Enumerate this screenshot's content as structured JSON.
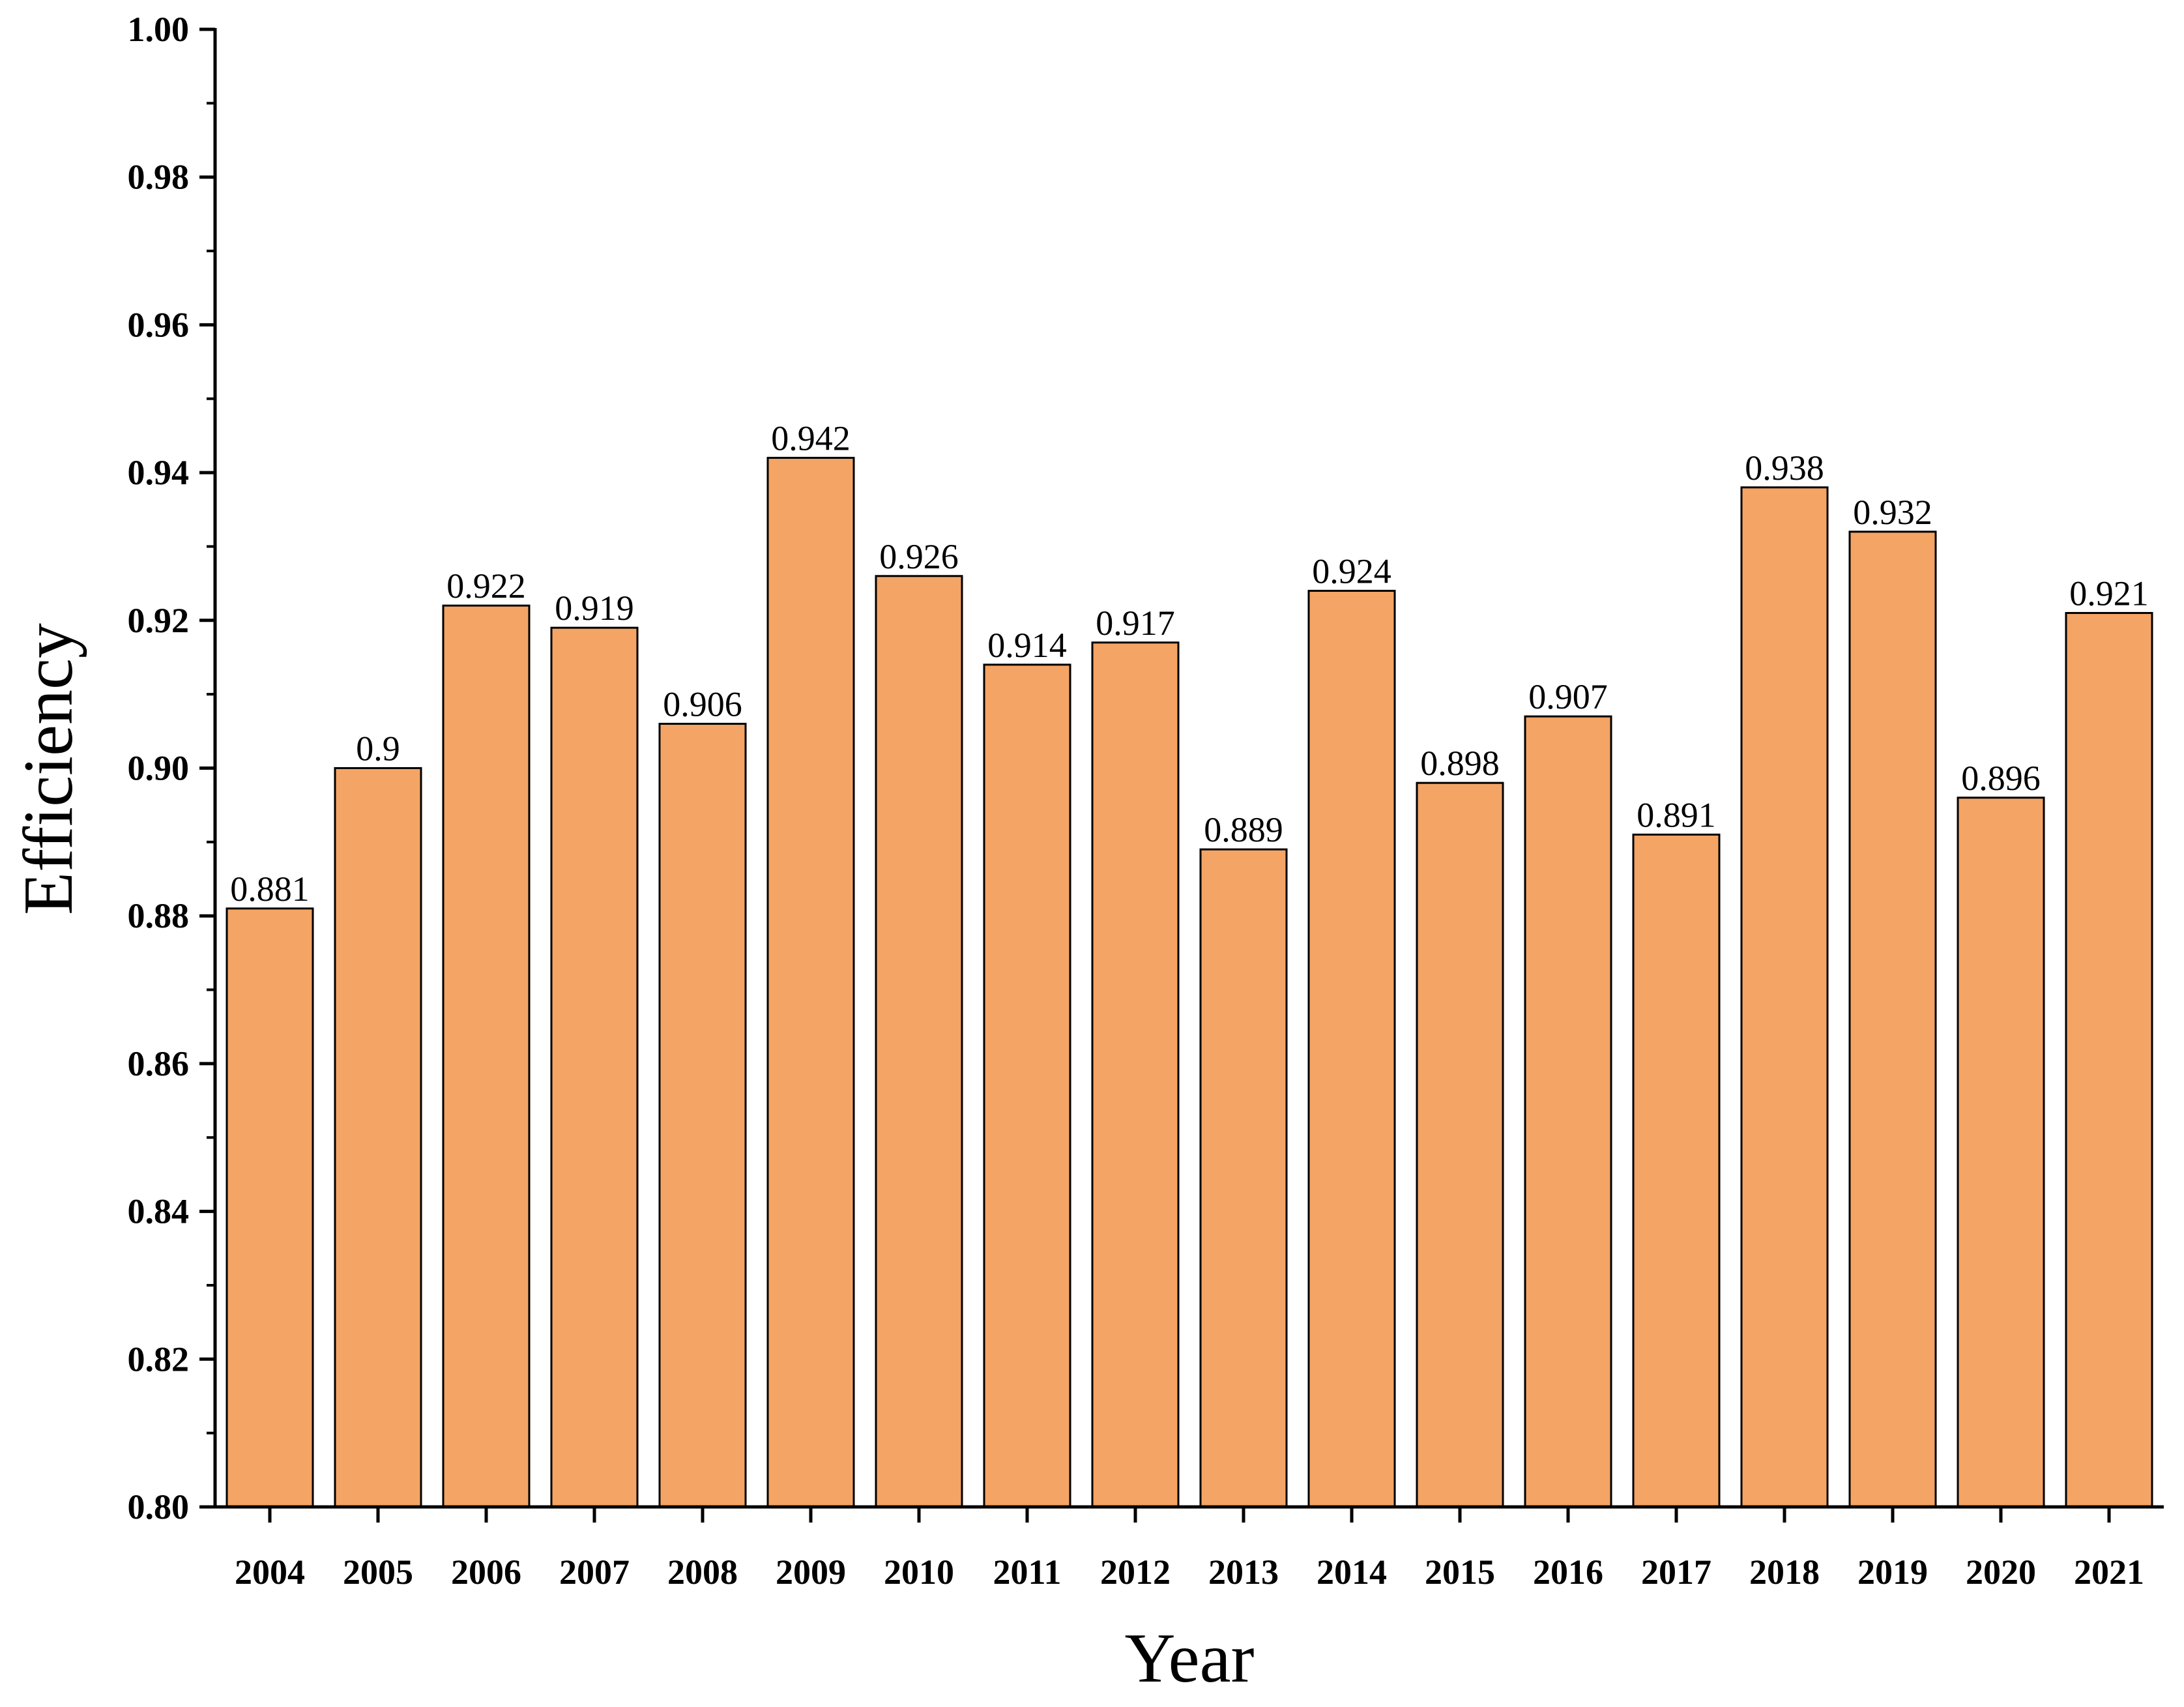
{
  "chart_data": {
    "type": "bar",
    "xlabel": "Year",
    "ylabel": "Efficiency",
    "ylim": [
      0.8,
      1.0
    ],
    "y_ticks": [
      "0.80",
      "0.82",
      "0.84",
      "0.86",
      "0.88",
      "0.90",
      "0.92",
      "0.94",
      "0.96",
      "0.98",
      "1.00"
    ],
    "categories": [
      "2004",
      "2005",
      "2006",
      "2007",
      "2008",
      "2009",
      "2010",
      "2011",
      "2012",
      "2013",
      "2014",
      "2015",
      "2016",
      "2017",
      "2018",
      "2019",
      "2020",
      "2021"
    ],
    "values": [
      0.881,
      0.9,
      0.922,
      0.919,
      0.906,
      0.942,
      0.926,
      0.914,
      0.917,
      0.889,
      0.924,
      0.898,
      0.907,
      0.891,
      0.938,
      0.932,
      0.896,
      0.921
    ],
    "value_labels": [
      "0.881",
      "0.9",
      "0.922",
      "0.919",
      "0.906",
      "0.942",
      "0.926",
      "0.914",
      "0.917",
      "0.889",
      "0.924",
      "0.898",
      "0.907",
      "0.891",
      "0.938",
      "0.932",
      "0.896",
      "0.921"
    ],
    "bar_color": "#F4A464",
    "bar_edge_color": "#000000",
    "grid": false,
    "legend": "none"
  }
}
